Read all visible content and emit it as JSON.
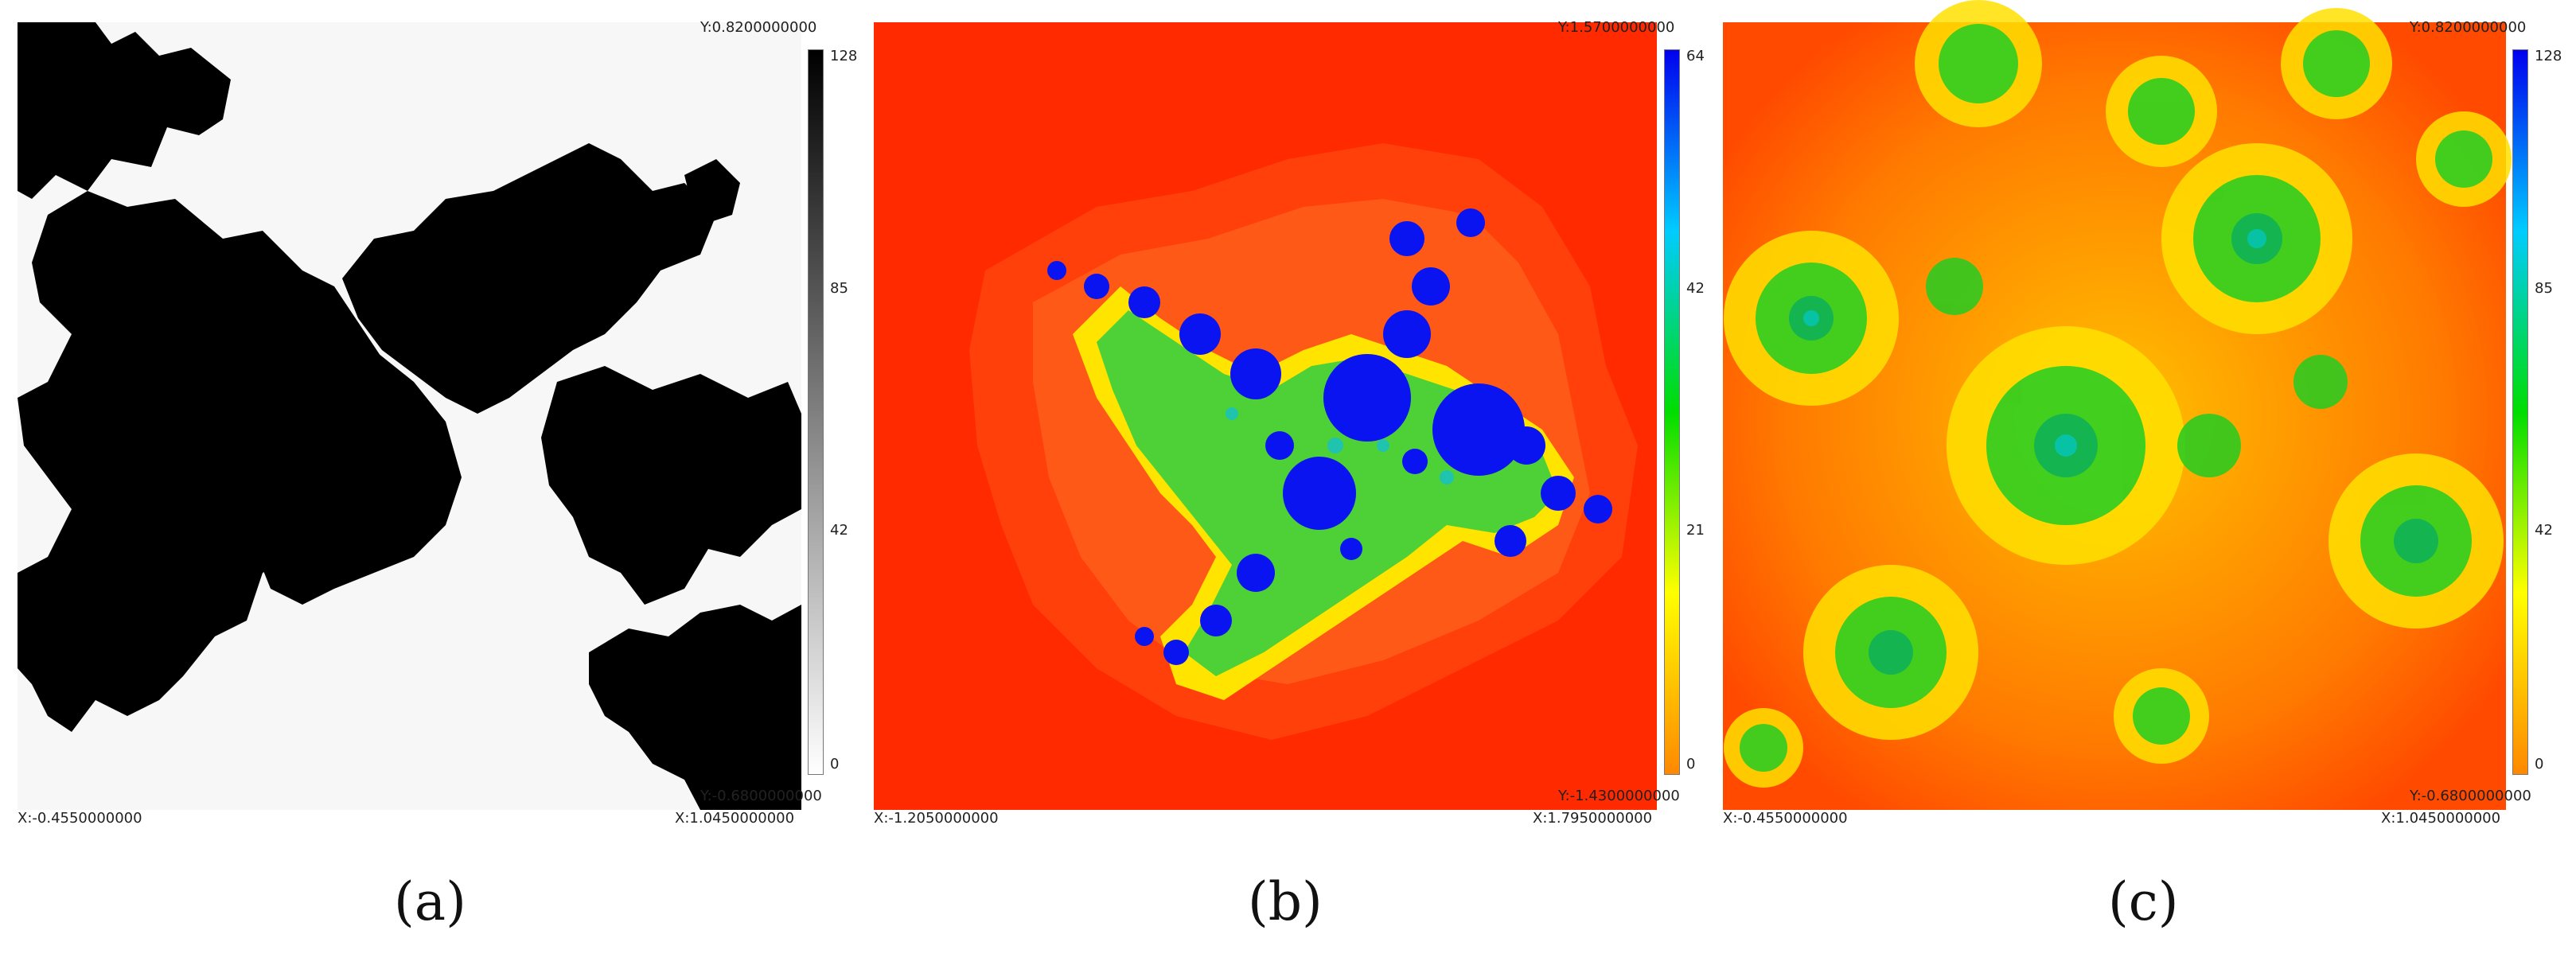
{
  "panels": [
    {
      "id": "a",
      "caption": "(a)",
      "y_max_label": "Y:0.8200000000",
      "y_min_label": "Y:-0.6800000000",
      "x_min_label": "X:-0.4550000000",
      "x_max_label": "X:1.0450000000",
      "colorbar_ticks": [
        "128",
        "85",
        "42",
        "0"
      ],
      "colorbar_colors": [
        "#000000",
        "#ffffff"
      ],
      "background_color": "#f7f7f7",
      "fractal_color": "#000000"
    },
    {
      "id": "b",
      "caption": "(b)",
      "y_max_label": "Y:1.5700000000",
      "y_min_label": "Y:-1.4300000000",
      "x_min_label": "X:-1.2050000000",
      "x_max_label": "X:1.7950000000",
      "colorbar_ticks": [
        "64",
        "42",
        "21",
        "0"
      ],
      "colorbar_colors": [
        "#0000ee",
        "#00ccff",
        "#00dd00",
        "#ffff00",
        "#ff8800"
      ],
      "background_color": "#ff2a00",
      "fractal_color": "#0a14f0"
    },
    {
      "id": "c",
      "caption": "(c)",
      "y_max_label": "Y:0.8200000000",
      "y_min_label": "Y:-0.6800000000",
      "x_min_label": "X:-0.4550000000",
      "x_max_label": "X:1.0450000000",
      "colorbar_ticks": [
        "128",
        "85",
        "42",
        "0"
      ],
      "colorbar_colors": [
        "#0000ee",
        "#00ccff",
        "#00dd00",
        "#ffff00",
        "#ff8800"
      ],
      "background_color": "#ff5a00",
      "fractal_color": "#22cc22"
    }
  ]
}
